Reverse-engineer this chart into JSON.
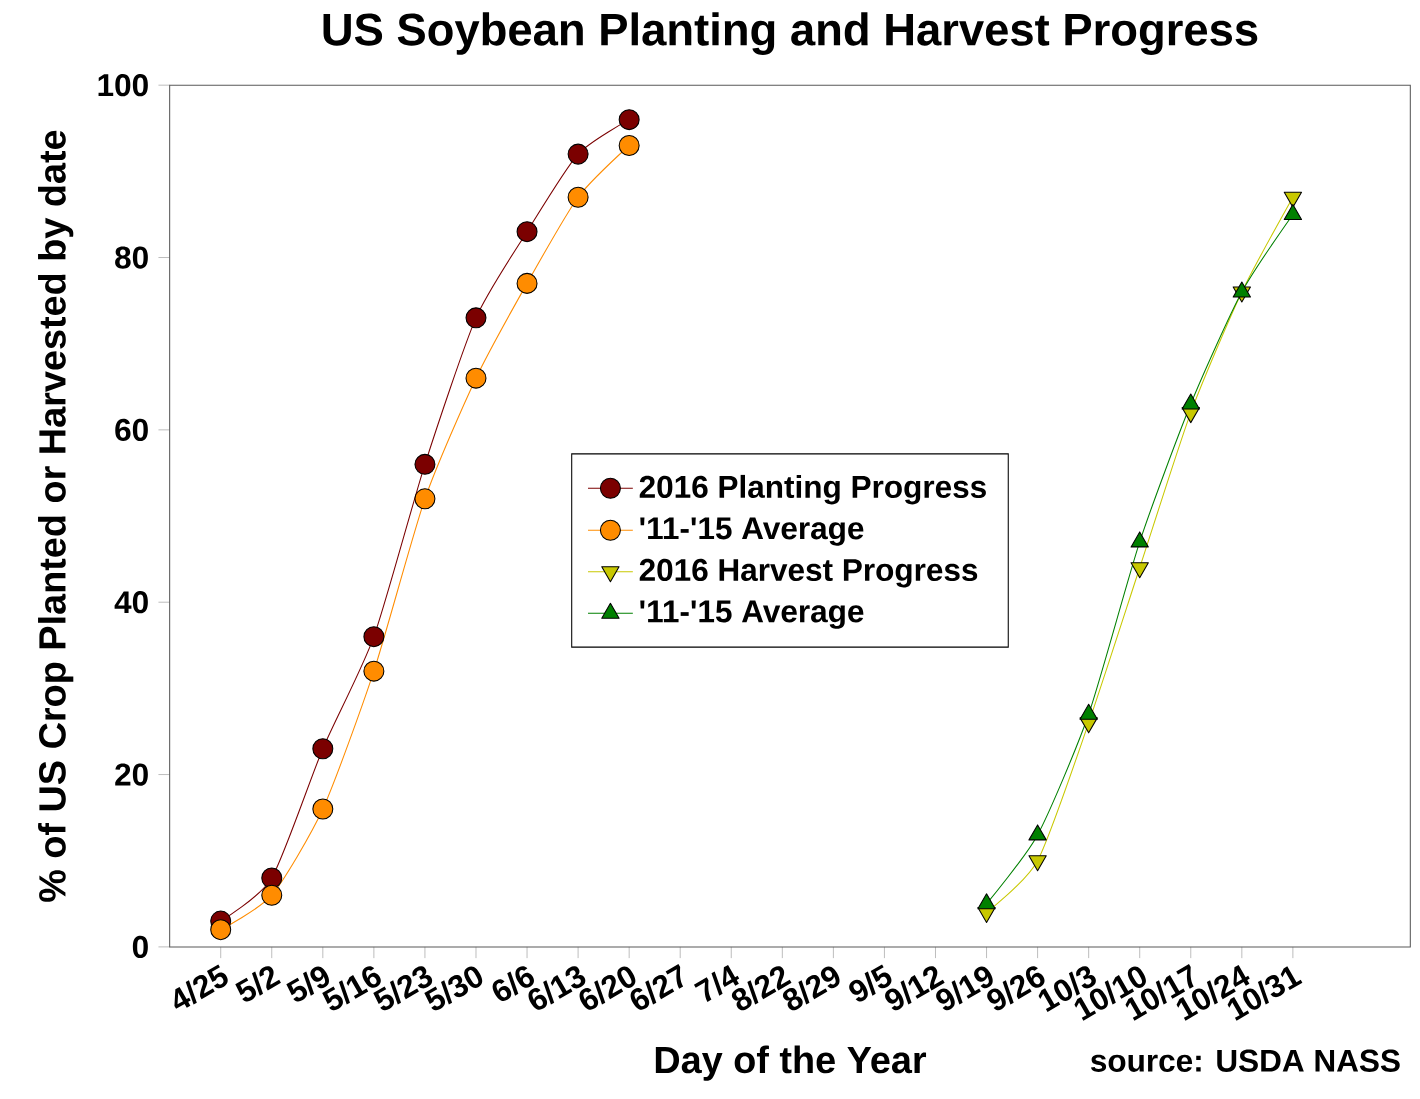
{
  "chart_data": {
    "type": "line",
    "title": "US Soybean Planting and Harvest Progress",
    "xlabel": "Day of the Year",
    "ylabel": "% of US Crop Planted or Harvested by date",
    "categories": [
      "4/25",
      "5/2",
      "5/9",
      "5/16",
      "5/23",
      "5/30",
      "6/6",
      "6/13",
      "6/20",
      "6/27",
      "7/4",
      "8/22",
      "8/29",
      "9/5",
      "9/12",
      "9/19",
      "9/26",
      "10/3",
      "10/10",
      "10/17",
      "10/24",
      "10/31"
    ],
    "series": [
      {
        "name": "2016 Planting Progress",
        "color": "#7b0000",
        "marker": "circle",
        "values": [
          3,
          8,
          23,
          36,
          56,
          73,
          83,
          92,
          96,
          null,
          null,
          null,
          null,
          null,
          null,
          null,
          null,
          null,
          null,
          null,
          null,
          null
        ]
      },
      {
        "name": "'11-'15 Average",
        "color": "#ff8c00",
        "marker": "circle",
        "values": [
          2,
          6,
          16,
          32,
          52,
          66,
          77,
          87,
          93,
          null,
          null,
          null,
          null,
          null,
          null,
          null,
          null,
          null,
          null,
          null,
          null,
          null
        ]
      },
      {
        "name": "2016 Harvest Progress",
        "color": "#c8c800",
        "marker": "triangle-down",
        "values": [
          null,
          null,
          null,
          null,
          null,
          null,
          null,
          null,
          null,
          null,
          null,
          null,
          null,
          null,
          null,
          4,
          10,
          26,
          44,
          62,
          76,
          87
        ]
      },
      {
        "name": "'11-'15 Average",
        "color": "#008000",
        "marker": "triangle",
        "values": [
          null,
          null,
          null,
          null,
          null,
          null,
          null,
          null,
          null,
          null,
          null,
          null,
          null,
          null,
          null,
          5,
          13,
          27,
          47,
          63,
          76,
          85
        ]
      }
    ],
    "ylim": [
      0,
      100
    ],
    "yticks": [
      0,
      20,
      40,
      60,
      80,
      100
    ],
    "grid": false,
    "legend": "center",
    "annotations": [
      "source: USDA NASS"
    ]
  }
}
